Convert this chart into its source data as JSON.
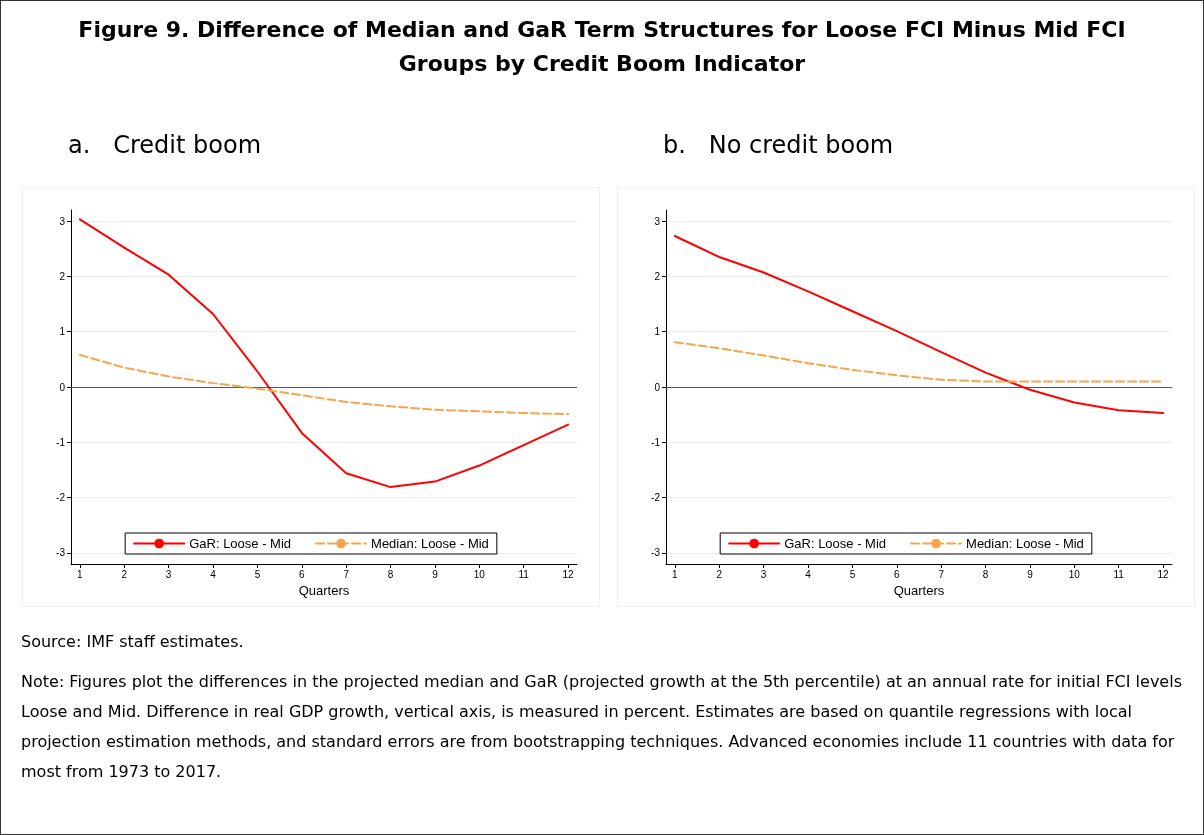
{
  "chart_data": [
    {
      "type": "line",
      "title": "Figure 9. Difference of Median and GaR Term Structures for Loose FCI Minus Mid FCI Groups by Credit Boom Indicator",
      "subtitle": "a.   Credit boom",
      "xlabel": "Quarters",
      "x": [
        1,
        2,
        3,
        4,
        5,
        6,
        7,
        8,
        9,
        10,
        11,
        12
      ],
      "xlim": [
        0.8,
        12.2
      ],
      "xticks": [
        1,
        2,
        3,
        4,
        5,
        6,
        7,
        8,
        9,
        10,
        11,
        12
      ],
      "ylim": [
        -3.2,
        3.2
      ],
      "yticks": [
        -3,
        -2,
        -1,
        0,
        1,
        2,
        3
      ],
      "grid": "y",
      "legend": "bottom",
      "marker": "none",
      "series": [
        {
          "name": "GaR: Loose - Mid",
          "color": "#ff0000",
          "line_style": "solid",
          "values": [
            3.03,
            2.52,
            2.03,
            1.32,
            0.28,
            -0.83,
            -1.56,
            -1.81,
            -1.71,
            -1.42,
            -1.05,
            -0.68
          ]
        },
        {
          "name": "Median: Loose - Mid",
          "color": "#f5a54a",
          "line_style": "dashed",
          "values": [
            0.58,
            0.35,
            0.19,
            0.07,
            -0.03,
            -0.15,
            -0.27,
            -0.35,
            -0.41,
            -0.44,
            -0.47,
            -0.49
          ]
        }
      ],
      "ref_lines": [
        {
          "axis": "y",
          "value": 0,
          "color": "#555555"
        }
      ],
      "annotations": [
        "Source: IMF staff estimates.",
        "Note: Figures plot the differences in the projected median and GaR (projected growth at the 5th percentile) at an annual rate for initial FCI levels Loose and Mid. Difference in real GDP growth, vertical axis, is measured in percent. Estimates are based on quantile regressions with local projection estimation methods, and standard errors are from bootstrapping techniques. Advanced economies include 11 countries with data for most from 1973 to 2017."
      ]
    },
    {
      "type": "line",
      "subtitle": "b.   No credit boom",
      "xlabel": "Quarters",
      "x": [
        1,
        2,
        3,
        4,
        5,
        6,
        7,
        8,
        9,
        10,
        11,
        12
      ],
      "xlim": [
        0.8,
        12.2
      ],
      "xticks": [
        1,
        2,
        3,
        4,
        5,
        6,
        7,
        8,
        9,
        10,
        11,
        12
      ],
      "ylim": [
        -3.2,
        3.2
      ],
      "yticks": [
        -3,
        -2,
        -1,
        0,
        1,
        2,
        3
      ],
      "grid": "y",
      "legend": "bottom",
      "marker": "none",
      "series": [
        {
          "name": "GaR: Loose - Mid",
          "color": "#ff0000",
          "line_style": "solid",
          "values": [
            2.73,
            2.35,
            2.07,
            1.73,
            1.37,
            1.01,
            0.63,
            0.26,
            -0.05,
            -0.28,
            -0.42,
            -0.47
          ]
        },
        {
          "name": "Median: Loose - Mid",
          "color": "#f5a54a",
          "line_style": "dashed",
          "values": [
            0.81,
            0.7,
            0.57,
            0.43,
            0.31,
            0.21,
            0.13,
            0.1,
            0.1,
            0.1,
            0.1,
            0.1
          ]
        }
      ],
      "ref_lines": [
        {
          "axis": "y",
          "value": 0,
          "color": "#555555"
        }
      ]
    }
  ]
}
